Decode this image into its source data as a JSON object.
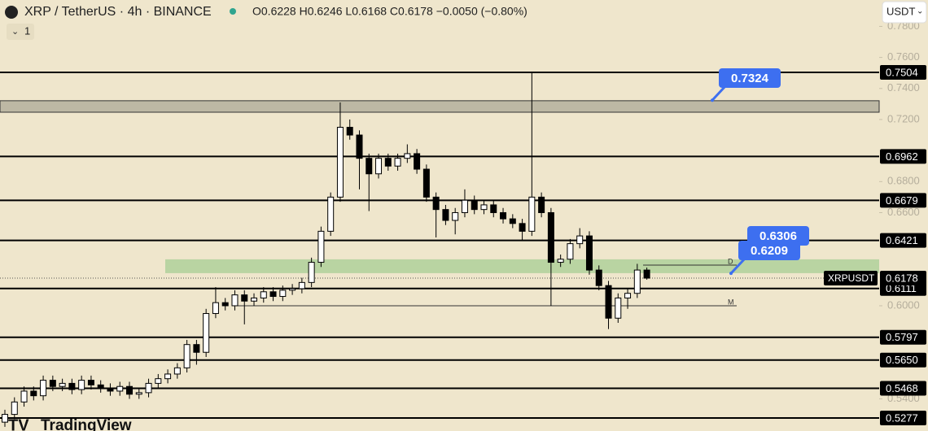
{
  "toolbar": {
    "symbol": "XRP / TetherUS · 4h · BINANCE",
    "ohlc": "O0.6228 H0.6246 L0.6168 C0.6178 −0.0050 (−0.80%)",
    "indicator_count": "1",
    "currency": "USDT",
    "brand": "TradingView"
  },
  "chart_data": {
    "type": "candlestick",
    "ylim": [
      0.5193,
      0.797
    ],
    "yticks": [
      {
        "value": 0.78,
        "label": "0.7800"
      },
      {
        "value": 0.76,
        "label": "0.7600"
      },
      {
        "value": 0.74,
        "label": "0.7400"
      },
      {
        "value": 0.72,
        "label": "0.7200"
      },
      {
        "value": 0.68,
        "label": "0.6800"
      },
      {
        "value": 0.66,
        "label": "0.6600"
      },
      {
        "value": 0.6,
        "label": "0.6000"
      },
      {
        "value": 0.54,
        "label": "0.5400"
      }
    ],
    "up_color": "#ffffff",
    "down_color": "#000000",
    "candles": [
      [
        0.525,
        0.533,
        0.522,
        0.53
      ],
      [
        0.53,
        0.541,
        0.527,
        0.538
      ],
      [
        0.538,
        0.548,
        0.535,
        0.545
      ],
      [
        0.545,
        0.548,
        0.539,
        0.542
      ],
      [
        0.542,
        0.555,
        0.539,
        0.552
      ],
      [
        0.552,
        0.555,
        0.545,
        0.548
      ],
      [
        0.548,
        0.553,
        0.545,
        0.55
      ],
      [
        0.55,
        0.553,
        0.543,
        0.546
      ],
      [
        0.546,
        0.555,
        0.543,
        0.552
      ],
      [
        0.552,
        0.555,
        0.546,
        0.549
      ],
      [
        0.549,
        0.552,
        0.544,
        0.547
      ],
      [
        0.547,
        0.55,
        0.542,
        0.545
      ],
      [
        0.545,
        0.551,
        0.542,
        0.548
      ],
      [
        0.548,
        0.551,
        0.54,
        0.543
      ],
      [
        0.543,
        0.547,
        0.54,
        0.544
      ],
      [
        0.544,
        0.553,
        0.541,
        0.55
      ],
      [
        0.55,
        0.556,
        0.547,
        0.553
      ],
      [
        0.553,
        0.559,
        0.55,
        0.556
      ],
      [
        0.556,
        0.563,
        0.553,
        0.56
      ],
      [
        0.56,
        0.578,
        0.557,
        0.575
      ],
      [
        0.575,
        0.578,
        0.562,
        0.57
      ],
      [
        0.57,
        0.598,
        0.567,
        0.595
      ],
      [
        0.595,
        0.612,
        0.592,
        0.602
      ],
      [
        0.602,
        0.605,
        0.597,
        0.6
      ],
      [
        0.6,
        0.61,
        0.597,
        0.607
      ],
      [
        0.607,
        0.61,
        0.588,
        0.603
      ],
      [
        0.603,
        0.608,
        0.6,
        0.605
      ],
      [
        0.605,
        0.612,
        0.602,
        0.609
      ],
      [
        0.609,
        0.612,
        0.603,
        0.606
      ],
      [
        0.606,
        0.613,
        0.603,
        0.61
      ],
      [
        0.61,
        0.614,
        0.607,
        0.611
      ],
      [
        0.611,
        0.618,
        0.608,
        0.615
      ],
      [
        0.615,
        0.631,
        0.612,
        0.628
      ],
      [
        0.628,
        0.651,
        0.625,
        0.648
      ],
      [
        0.648,
        0.673,
        0.645,
        0.67
      ],
      [
        0.67,
        0.731,
        0.667,
        0.715
      ],
      [
        0.715,
        0.72,
        0.707,
        0.71
      ],
      [
        0.71,
        0.713,
        0.675,
        0.695
      ],
      [
        0.695,
        0.698,
        0.661,
        0.685
      ],
      [
        0.685,
        0.698,
        0.682,
        0.695
      ],
      [
        0.695,
        0.698,
        0.687,
        0.69
      ],
      [
        0.69,
        0.698,
        0.687,
        0.695
      ],
      [
        0.695,
        0.704,
        0.692,
        0.698
      ],
      [
        0.698,
        0.701,
        0.685,
        0.688
      ],
      [
        0.688,
        0.691,
        0.667,
        0.67
      ],
      [
        0.67,
        0.673,
        0.644,
        0.662
      ],
      [
        0.662,
        0.665,
        0.652,
        0.655
      ],
      [
        0.655,
        0.663,
        0.646,
        0.66
      ],
      [
        0.66,
        0.675,
        0.657,
        0.668
      ],
      [
        0.668,
        0.671,
        0.659,
        0.662
      ],
      [
        0.662,
        0.668,
        0.659,
        0.665
      ],
      [
        0.665,
        0.668,
        0.657,
        0.66
      ],
      [
        0.66,
        0.663,
        0.653,
        0.656
      ],
      [
        0.656,
        0.659,
        0.65,
        0.653
      ],
      [
        0.653,
        0.656,
        0.642,
        0.648
      ],
      [
        0.648,
        0.7504,
        0.645,
        0.67
      ],
      [
        0.67,
        0.673,
        0.657,
        0.66
      ],
      [
        0.66,
        0.663,
        0.6,
        0.628
      ],
      [
        0.628,
        0.633,
        0.625,
        0.63
      ],
      [
        0.63,
        0.643,
        0.627,
        0.64
      ],
      [
        0.64,
        0.65,
        0.637,
        0.645
      ],
      [
        0.645,
        0.648,
        0.62,
        0.623
      ],
      [
        0.623,
        0.626,
        0.61,
        0.613
      ],
      [
        0.613,
        0.616,
        0.585,
        0.592
      ],
      [
        0.592,
        0.608,
        0.589,
        0.605
      ],
      [
        0.605,
        0.611,
        0.598,
        0.608
      ],
      [
        0.608,
        0.627,
        0.605,
        0.623
      ],
      [
        0.623,
        0.6246,
        0.6168,
        0.6178
      ]
    ],
    "levels": [
      0.7504,
      0.6962,
      0.6679,
      0.6421,
      0.6111,
      0.5797,
      {
        "value": 0.565,
        "label": "0.5650"
      },
      0.5468,
      0.5277
    ],
    "zones": [
      {
        "from": 0.7247,
        "to": 0.7321,
        "color": "#bdb8a4"
      },
      {
        "from": 0.621,
        "to": 0.6299,
        "color": "#b9d4a2"
      }
    ],
    "pivot_lines": [
      {
        "label": "D",
        "value": 0.6262
      },
      {
        "label": "M",
        "value": 0.6
      }
    ],
    "callouts": [
      0.7324,
      0.6306,
      0.6209
    ],
    "current_price": {
      "symbol": "XRPUSDT",
      "value": 0.6178
    }
  }
}
